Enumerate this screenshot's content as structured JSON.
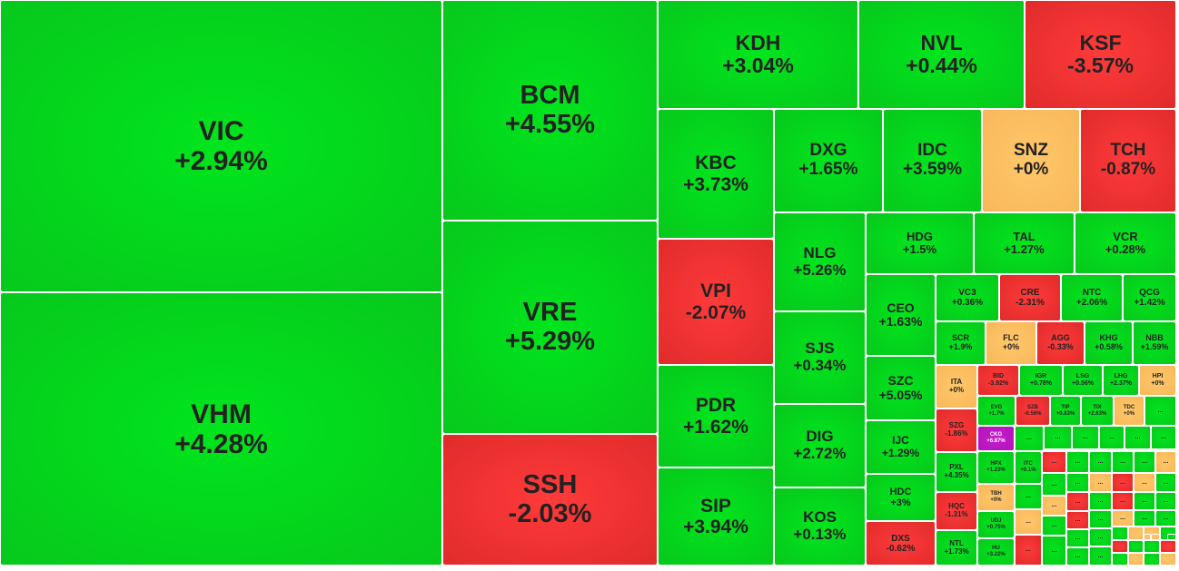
{
  "colors": {
    "up": "#0cd41d",
    "down": "#ef3434",
    "flat": "#f8bd5e",
    "ceiling": "#c01ac6",
    "border": "#ffffff"
  },
  "chart_data": {
    "type": "heatmap",
    "tiles": [
      {
        "symbol": "VIC",
        "change": "+2.94%",
        "value": 2.94,
        "status": "up"
      },
      {
        "symbol": "VHM",
        "change": "+4.28%",
        "value": 4.28,
        "status": "up"
      },
      {
        "symbol": "BCM",
        "change": "+4.55%",
        "value": 4.55,
        "status": "up"
      },
      {
        "symbol": "VRE",
        "change": "+5.29%",
        "value": 5.29,
        "status": "up"
      },
      {
        "symbol": "SSH",
        "change": "-2.03%",
        "value": -2.03,
        "status": "down"
      },
      {
        "symbol": "KDH",
        "change": "+3.04%",
        "value": 3.04,
        "status": "up"
      },
      {
        "symbol": "NVL",
        "change": "+0.44%",
        "value": 0.44,
        "status": "up"
      },
      {
        "symbol": "KSF",
        "change": "-3.57%",
        "value": -3.57,
        "status": "down"
      },
      {
        "symbol": "KBC",
        "change": "+3.73%",
        "value": 3.73,
        "status": "up"
      },
      {
        "symbol": "VPI",
        "change": "-2.07%",
        "value": -2.07,
        "status": "down"
      },
      {
        "symbol": "PDR",
        "change": "+1.62%",
        "value": 1.62,
        "status": "up"
      },
      {
        "symbol": "SIP",
        "change": "+3.94%",
        "value": 3.94,
        "status": "up"
      },
      {
        "symbol": "DXG",
        "change": "+1.65%",
        "value": 1.65,
        "status": "up"
      },
      {
        "symbol": "IDC",
        "change": "+3.59%",
        "value": 3.59,
        "status": "up"
      },
      {
        "symbol": "SNZ",
        "change": "+0%",
        "value": 0,
        "status": "flat"
      },
      {
        "symbol": "TCH",
        "change": "-0.87%",
        "value": -0.87,
        "status": "down"
      },
      {
        "symbol": "NLG",
        "change": "+5.26%",
        "value": 5.26,
        "status": "up"
      },
      {
        "symbol": "SJS",
        "change": "+0.34%",
        "value": 0.34,
        "status": "up"
      },
      {
        "symbol": "DIG",
        "change": "+2.72%",
        "value": 2.72,
        "status": "up"
      },
      {
        "symbol": "KOS",
        "change": "+0.13%",
        "value": 0.13,
        "status": "up"
      },
      {
        "symbol": "HDG",
        "change": "+1.5%",
        "value": 1.5,
        "status": "up"
      },
      {
        "symbol": "TAL",
        "change": "+1.27%",
        "value": 1.27,
        "status": "up"
      },
      {
        "symbol": "VCR",
        "change": "+0.28%",
        "value": 0.28,
        "status": "up"
      },
      {
        "symbol": "CEO",
        "change": "+1.63%",
        "value": 1.63,
        "status": "up"
      },
      {
        "symbol": "SZC",
        "change": "+5.05%",
        "value": 5.05,
        "status": "up"
      },
      {
        "symbol": "IJC",
        "change": "+1.29%",
        "value": 1.29,
        "status": "up"
      },
      {
        "symbol": "HDC",
        "change": "+3%",
        "value": 3,
        "status": "up"
      },
      {
        "symbol": "DXS",
        "change": "-0.62%",
        "value": -0.62,
        "status": "down"
      },
      {
        "symbol": "VC3",
        "change": "+0.36%",
        "value": 0.36,
        "status": "up"
      },
      {
        "symbol": "CRE",
        "change": "-2.31%",
        "value": -2.31,
        "status": "down"
      },
      {
        "symbol": "NTC",
        "change": "+2.06%",
        "value": 2.06,
        "status": "up"
      },
      {
        "symbol": "QCG",
        "change": "+1.42%",
        "value": 1.42,
        "status": "up"
      },
      {
        "symbol": "SCR",
        "change": "+1.9%",
        "value": 1.9,
        "status": "up"
      },
      {
        "symbol": "FLC",
        "change": "+0%",
        "value": 0,
        "status": "flat"
      },
      {
        "symbol": "AGG",
        "change": "-0.33%",
        "value": -0.33,
        "status": "down"
      },
      {
        "symbol": "KHG",
        "change": "+0.58%",
        "value": 0.58,
        "status": "up"
      },
      {
        "symbol": "NBB",
        "change": "+1.59%",
        "value": 1.59,
        "status": "up"
      },
      {
        "symbol": "ITA",
        "change": "+0%",
        "value": 0,
        "status": "flat"
      },
      {
        "symbol": "BID",
        "change": "-3.92%",
        "value": -3.92,
        "status": "down"
      },
      {
        "symbol": "IGR",
        "change": "+0.78%",
        "value": 0.78,
        "status": "up"
      },
      {
        "symbol": "LSG",
        "change": "+0.56%",
        "value": 0.56,
        "status": "up"
      },
      {
        "symbol": "LHG",
        "change": "+2.37%",
        "value": 2.37,
        "status": "up"
      },
      {
        "symbol": "HPI",
        "change": "+0%",
        "value": 0,
        "status": "flat"
      },
      {
        "symbol": "SZG",
        "change": "-1.86%",
        "value": -1.86,
        "status": "down"
      },
      {
        "symbol": "EVG",
        "change": "+1.7%",
        "value": 1.7,
        "status": "up"
      },
      {
        "symbol": "SZB",
        "change": "-0.56%",
        "value": -0.56,
        "status": "down"
      },
      {
        "symbol": "TIP",
        "change": "+0.83%",
        "value": 0.83,
        "status": "up"
      },
      {
        "symbol": "TIX",
        "change": "+2.63%",
        "value": 2.63,
        "status": "up"
      },
      {
        "symbol": "TDC",
        "change": "+0%",
        "value": 0,
        "status": "flat"
      },
      {
        "symbol": "CKG",
        "change": "+6.87%",
        "value": 6.87,
        "status": "ceiling"
      },
      {
        "symbol": "PXL",
        "change": "+4.35%",
        "value": 4.35,
        "status": "up"
      },
      {
        "symbol": "HPX",
        "change": "+1.23%",
        "value": 1.23,
        "status": "up"
      },
      {
        "symbol": "ITC",
        "change": "+0.1%",
        "value": 0.1,
        "status": "up"
      },
      {
        "symbol": "HQC",
        "change": "-1.31%",
        "value": -1.31,
        "status": "down"
      },
      {
        "symbol": "TBH",
        "change": "+0%",
        "value": 0,
        "status": "flat"
      },
      {
        "symbol": "UDJ",
        "change": "+0.75%",
        "value": 0.75,
        "status": "up"
      },
      {
        "symbol": "NTL",
        "change": "+1.73%",
        "value": 1.73,
        "status": "up"
      },
      {
        "symbol": "HU",
        "change": "+3.22%",
        "value": 3.22,
        "status": "up"
      }
    ],
    "small_tiles": [
      {
        "label": "...",
        "status": "up"
      },
      {
        "label": "...",
        "status": "up"
      },
      {
        "label": "...",
        "status": "up"
      },
      {
        "label": "...",
        "status": "up"
      },
      {
        "label": "...",
        "status": "up"
      },
      {
        "label": "...",
        "status": "up"
      },
      {
        "label": "...",
        "status": "up"
      },
      {
        "label": "...",
        "status": "down"
      },
      {
        "label": "...",
        "status": "up"
      },
      {
        "label": "...",
        "status": "up"
      },
      {
        "label": "...",
        "status": "up"
      },
      {
        "label": "...",
        "status": "up"
      },
      {
        "label": "...",
        "status": "flat"
      },
      {
        "label": "...",
        "status": "up"
      },
      {
        "label": "...",
        "status": "up"
      },
      {
        "label": "...",
        "status": "flat"
      },
      {
        "label": "...",
        "status": "down"
      },
      {
        "label": "...",
        "status": "flat"
      },
      {
        "label": "...",
        "status": "up"
      },
      {
        "label": "...",
        "status": "up"
      },
      {
        "label": "...",
        "status": "flat"
      },
      {
        "label": "...",
        "status": "down"
      },
      {
        "label": "...",
        "status": "up"
      },
      {
        "label": "...",
        "status": "down"
      },
      {
        "label": "...",
        "status": "up"
      },
      {
        "label": "...",
        "status": "up"
      },
      {
        "label": "...",
        "status": "flat"
      },
      {
        "label": "...",
        "status": "up"
      },
      {
        "label": "...",
        "status": "down"
      },
      {
        "label": "...",
        "status": "up"
      },
      {
        "label": "...",
        "status": "flat"
      },
      {
        "label": "...",
        "status": "up"
      },
      {
        "label": "...",
        "status": "up"
      },
      {
        "label": "...",
        "status": "down"
      },
      {
        "label": "...",
        "status": "up"
      },
      {
        "label": "...",
        "status": "up"
      },
      {
        "label": "...",
        "status": "up"
      },
      {
        "label": "...",
        "status": "up"
      },
      {
        "label": "...",
        "status": "flat"
      },
      {
        "label": "...",
        "status": "flat"
      },
      {
        "label": "...",
        "status": "up"
      },
      {
        "label": "...",
        "status": "up"
      },
      {
        "label": "...",
        "status": "up"
      },
      {
        "label": "...",
        "status": "down"
      },
      {
        "label": "...",
        "status": "up"
      },
      {
        "label": "...",
        "status": "up"
      },
      {
        "label": "...",
        "status": "down"
      },
      {
        "label": "...",
        "status": "up"
      },
      {
        "label": "...",
        "status": "flat"
      },
      {
        "label": "...",
        "status": "up"
      },
      {
        "label": "...",
        "status": "flat"
      },
      {
        "label": "...",
        "status": "flat"
      },
      {
        "label": "...",
        "status": "flat"
      },
      {
        "label": "...",
        "status": "up"
      }
    ]
  }
}
